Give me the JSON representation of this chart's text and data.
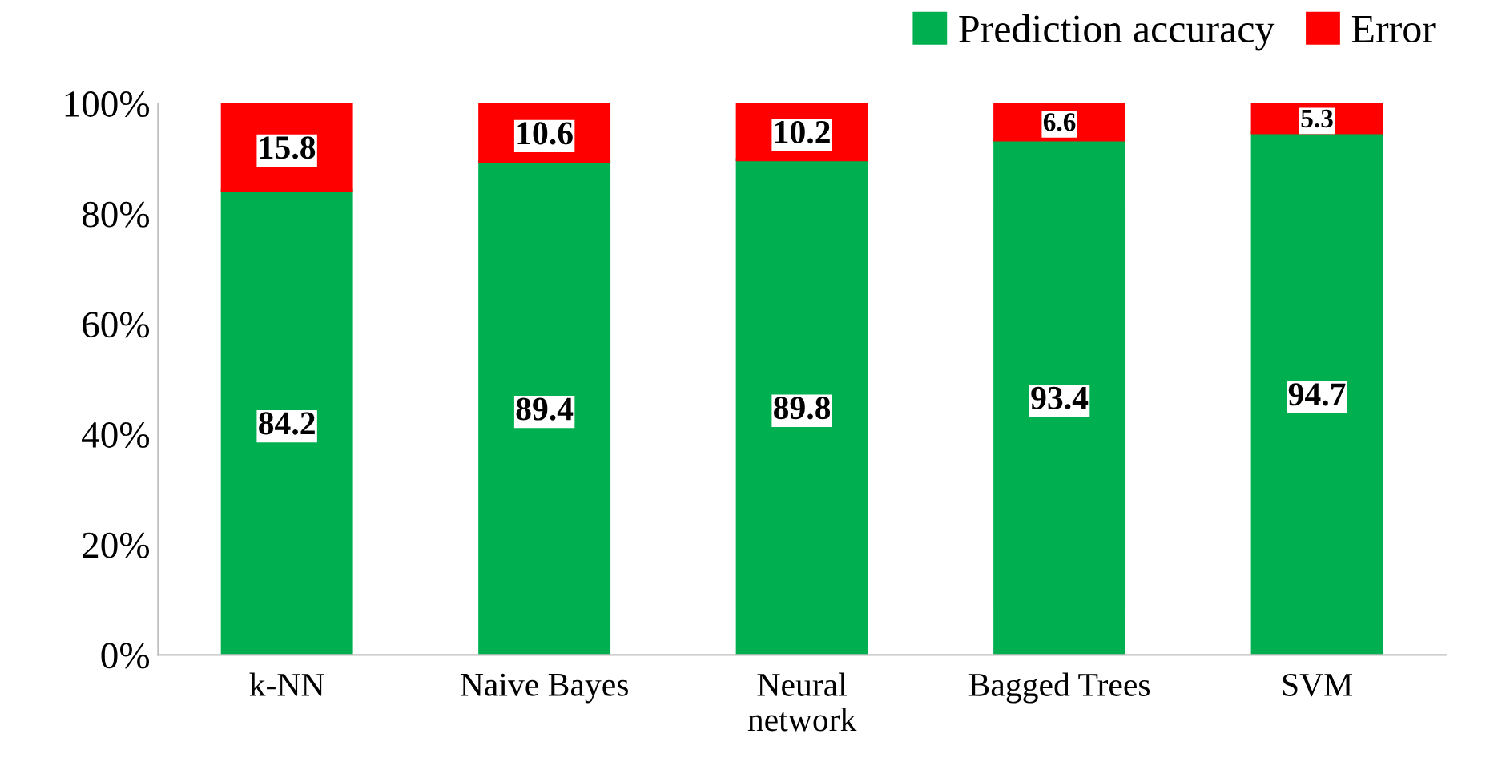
{
  "chart_data": {
    "type": "bar",
    "stacked": true,
    "categories": [
      "k-NN",
      "Naive Bayes",
      "Neural\nnetwork",
      "Bagged Trees",
      "SVM"
    ],
    "series": [
      {
        "name": "Prediction accuracy",
        "color": "#00b050",
        "values": [
          84.2,
          89.4,
          89.8,
          93.4,
          94.7
        ]
      },
      {
        "name": "Error",
        "color": "#ff0000",
        "values": [
          15.8,
          10.6,
          10.2,
          6.6,
          5.3
        ]
      }
    ],
    "ylim": [
      0,
      100
    ],
    "yticks": [
      {
        "value": 0,
        "label": "0%"
      },
      {
        "value": 20,
        "label": "20%"
      },
      {
        "value": 40,
        "label": "40%"
      },
      {
        "value": 60,
        "label": "60%"
      },
      {
        "value": 80,
        "label": "80%"
      },
      {
        "value": 100,
        "label": "100%"
      }
    ],
    "data_labels": true,
    "legend": "top right",
    "grid": false
  }
}
